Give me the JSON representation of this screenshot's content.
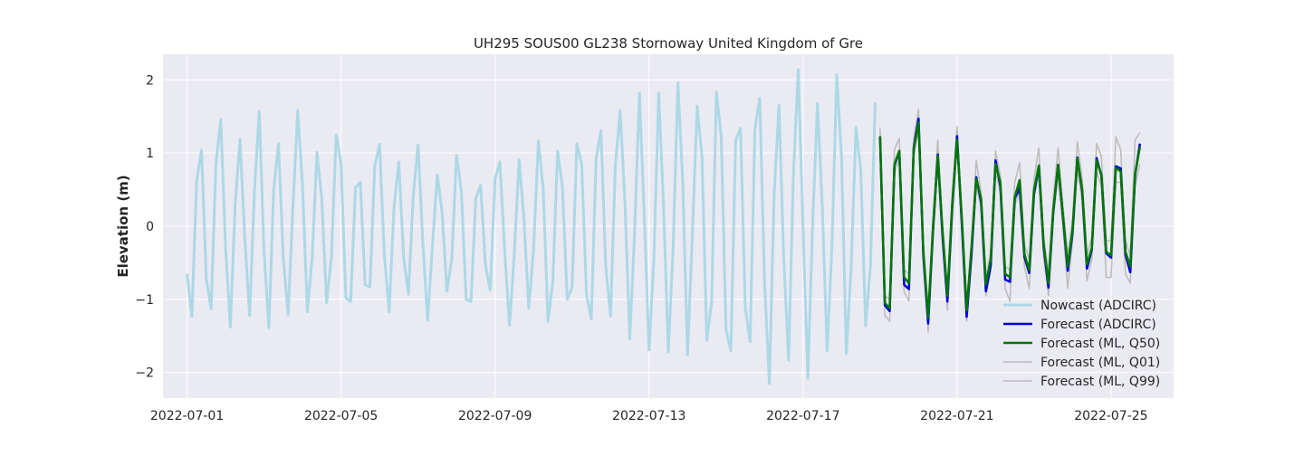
{
  "chart_data": {
    "type": "line",
    "title": "UH295 SOUS00 GL238 Stornoway United Kingdom of Gre",
    "xlabel": "",
    "ylabel": "Elevation (m)",
    "x_range": [
      "2022-06-30T09:00",
      "2022-07-26T15:00"
    ],
    "ylim": [
      -2.35,
      2.35
    ],
    "x_ticks": [
      "2022-07-01",
      "2022-07-05",
      "2022-07-09",
      "2022-07-13",
      "2022-07-17",
      "2022-07-21",
      "2022-07-25"
    ],
    "y_ticks": [
      -2,
      -1,
      0,
      1,
      2
    ],
    "grid": true,
    "background": "#eaeaf2",
    "legend_position": "bottom-right",
    "series": [
      {
        "name": "Nowcast (ADCIRC)",
        "color": "#add8e6",
        "x": [
          "2022-07-01T00:00",
          "2022-07-01T03:00",
          "2022-07-01T06:00",
          "2022-07-01T09:00",
          "2022-07-01T12:00",
          "2022-07-01T15:00",
          "2022-07-01T18:00",
          "2022-07-01T21:00",
          "2022-07-02T00:00",
          "2022-07-02T03:00",
          "2022-07-02T06:00",
          "2022-07-02T09:00",
          "2022-07-02T12:00",
          "2022-07-02T15:00",
          "2022-07-02T18:00",
          "2022-07-02T21:00",
          "2022-07-03T00:00",
          "2022-07-03T03:00",
          "2022-07-03T06:00",
          "2022-07-03T09:00",
          "2022-07-03T12:00",
          "2022-07-03T15:00",
          "2022-07-03T18:00",
          "2022-07-03T21:00",
          "2022-07-04T00:00",
          "2022-07-04T03:00",
          "2022-07-04T06:00",
          "2022-07-04T09:00",
          "2022-07-04T12:00",
          "2022-07-04T15:00",
          "2022-07-04T18:00",
          "2022-07-04T21:00",
          "2022-07-05T00:00",
          "2022-07-05T03:00",
          "2022-07-05T06:00",
          "2022-07-05T09:00",
          "2022-07-05T12:00",
          "2022-07-05T15:00",
          "2022-07-05T18:00",
          "2022-07-05T21:00",
          "2022-07-06T00:00",
          "2022-07-06T03:00",
          "2022-07-06T06:00",
          "2022-07-06T09:00",
          "2022-07-06T12:00",
          "2022-07-06T15:00",
          "2022-07-06T18:00",
          "2022-07-06T21:00",
          "2022-07-07T00:00",
          "2022-07-07T03:00",
          "2022-07-07T06:00",
          "2022-07-07T09:00",
          "2022-07-07T12:00",
          "2022-07-07T15:00",
          "2022-07-07T18:00",
          "2022-07-07T21:00",
          "2022-07-08T00:00",
          "2022-07-08T03:00",
          "2022-07-08T06:00",
          "2022-07-08T09:00",
          "2022-07-08T12:00",
          "2022-07-08T15:00",
          "2022-07-08T18:00",
          "2022-07-08T21:00",
          "2022-07-09T00:00",
          "2022-07-09T03:00",
          "2022-07-09T06:00",
          "2022-07-09T09:00",
          "2022-07-09T12:00",
          "2022-07-09T15:00",
          "2022-07-09T18:00",
          "2022-07-09T21:00",
          "2022-07-10T00:00",
          "2022-07-10T03:00",
          "2022-07-10T06:00",
          "2022-07-10T09:00",
          "2022-07-10T12:00",
          "2022-07-10T15:00",
          "2022-07-10T18:00",
          "2022-07-10T21:00",
          "2022-07-11T00:00",
          "2022-07-11T03:00",
          "2022-07-11T06:00",
          "2022-07-11T09:00",
          "2022-07-11T12:00",
          "2022-07-11T15:00",
          "2022-07-11T18:00",
          "2022-07-11T21:00",
          "2022-07-12T00:00",
          "2022-07-12T03:00",
          "2022-07-12T06:00",
          "2022-07-12T09:00",
          "2022-07-12T12:00",
          "2022-07-12T15:00",
          "2022-07-12T18:00",
          "2022-07-12T21:00",
          "2022-07-13T00:00",
          "2022-07-13T03:00",
          "2022-07-13T06:00",
          "2022-07-13T09:00",
          "2022-07-13T12:00",
          "2022-07-13T15:00",
          "2022-07-13T18:00",
          "2022-07-13T21:00",
          "2022-07-14T00:00",
          "2022-07-14T03:00",
          "2022-07-14T06:00",
          "2022-07-14T09:00",
          "2022-07-14T12:00",
          "2022-07-14T15:00",
          "2022-07-14T18:00",
          "2022-07-14T21:00",
          "2022-07-15T00:00",
          "2022-07-15T03:00",
          "2022-07-15T06:00",
          "2022-07-15T09:00",
          "2022-07-15T12:00",
          "2022-07-15T15:00",
          "2022-07-15T18:00",
          "2022-07-15T21:00",
          "2022-07-16T00:00",
          "2022-07-16T03:00",
          "2022-07-16T06:00",
          "2022-07-16T09:00",
          "2022-07-16T12:00",
          "2022-07-16T15:00",
          "2022-07-16T18:00",
          "2022-07-16T21:00",
          "2022-07-17T00:00",
          "2022-07-17T03:00",
          "2022-07-17T06:00",
          "2022-07-17T09:00",
          "2022-07-17T12:00",
          "2022-07-17T15:00",
          "2022-07-17T18:00",
          "2022-07-17T21:00",
          "2022-07-18T00:00",
          "2022-07-18T03:00",
          "2022-07-18T06:00",
          "2022-07-18T09:00",
          "2022-07-18T12:00",
          "2022-07-18T15:00",
          "2022-07-18T18:00",
          "2022-07-18T21:00"
        ],
        "y": [
          -0.65,
          -1.23,
          0.63,
          1.04,
          -0.72,
          -1.13,
          0.85,
          1.46,
          -0.3,
          -1.38,
          0.3,
          1.19,
          -0.17,
          -1.22,
          0.47,
          1.57,
          -0.35,
          -1.39,
          0.49,
          1.13,
          -0.44,
          -1.21,
          0.27,
          1.58,
          0.55,
          -1.17,
          -0.42,
          1.01,
          0.37,
          -1.05,
          -0.42,
          1.25,
          0.85,
          -0.98,
          -1.03,
          0.53,
          0.6,
          -0.8,
          -0.83,
          0.82,
          1.12,
          -0.4,
          -1.17,
          0.25,
          0.88,
          -0.42,
          -0.93,
          0.41,
          1.11,
          -0.23,
          -1.29,
          -0.25,
          0.7,
          0.19,
          -0.89,
          -0.45,
          0.97,
          0.48,
          -1.0,
          -1.03,
          0.38,
          0.56,
          -0.53,
          -0.87,
          0.65,
          0.88,
          -0.33,
          -1.36,
          -0.37,
          0.91,
          0.1,
          -1.12,
          -0.32,
          1.17,
          0.52,
          -1.3,
          -0.76,
          1.03,
          0.54,
          -1.0,
          -0.84,
          1.13,
          0.85,
          -0.93,
          -1.27,
          0.92,
          1.31,
          -0.55,
          -1.23,
          0.83,
          1.58,
          0.31,
          -1.54,
          -0.08,
          1.82,
          0.16,
          -1.69,
          -0.46,
          1.82,
          0.3,
          -1.72,
          -0.3,
          1.96,
          0.6,
          -1.76,
          -0.12,
          1.64,
          0.95,
          -1.56,
          -1.04,
          1.83,
          1.22,
          -1.42,
          -1.7,
          1.17,
          1.34,
          -1.12,
          -1.58,
          1.33,
          1.75,
          -0.76,
          -2.15,
          0.44,
          1.65,
          -0.45,
          -1.83,
          0.71,
          2.14,
          -0.02,
          -2.08,
          0.04,
          1.68,
          0.27,
          -1.7,
          -0.29,
          2.07,
          0.94,
          -1.74,
          -0.55,
          1.35,
          0.76,
          -1.36,
          -0.55,
          1.69
        ]
      },
      {
        "name": "Forecast (ADCIRC)",
        "color": "#0000dd",
        "x": [
          "2022-07-19T00:00",
          "2022-07-19T03:00",
          "2022-07-19T06:00",
          "2022-07-19T09:00",
          "2022-07-19T12:00",
          "2022-07-19T15:00",
          "2022-07-19T18:00",
          "2022-07-19T21:00",
          "2022-07-20T00:00",
          "2022-07-20T03:00",
          "2022-07-20T06:00",
          "2022-07-20T09:00",
          "2022-07-20T12:00",
          "2022-07-20T15:00",
          "2022-07-20T18:00",
          "2022-07-20T21:00",
          "2022-07-21T00:00",
          "2022-07-21T03:00",
          "2022-07-21T06:00",
          "2022-07-21T09:00",
          "2022-07-21T12:00",
          "2022-07-21T15:00",
          "2022-07-21T18:00",
          "2022-07-21T21:00",
          "2022-07-22T00:00",
          "2022-07-22T03:00",
          "2022-07-22T06:00",
          "2022-07-22T09:00",
          "2022-07-22T12:00",
          "2022-07-22T15:00",
          "2022-07-22T18:00",
          "2022-07-22T21:00",
          "2022-07-23T00:00",
          "2022-07-23T03:00",
          "2022-07-23T06:00",
          "2022-07-23T09:00",
          "2022-07-23T12:00",
          "2022-07-23T15:00",
          "2022-07-23T18:00",
          "2022-07-23T21:00",
          "2022-07-24T00:00",
          "2022-07-24T03:00",
          "2022-07-24T06:00",
          "2022-07-24T09:00",
          "2022-07-24T12:00",
          "2022-07-24T15:00",
          "2022-07-24T18:00",
          "2022-07-24T21:00",
          "2022-07-25T00:00",
          "2022-07-25T03:00",
          "2022-07-25T06:00",
          "2022-07-25T09:00",
          "2022-07-25T12:00",
          "2022-07-25T15:00",
          "2022-07-25T18:00",
          "2022-07-25T21:00"
        ],
        "y": [
          1.23,
          -1.08,
          -1.16,
          0.83,
          1.02,
          -0.8,
          -0.86,
          1.07,
          1.47,
          -0.4,
          -1.33,
          -0.07,
          0.98,
          -0.15,
          -1.03,
          0.25,
          1.23,
          0.03,
          -1.24,
          -0.39,
          0.67,
          0.33,
          -0.89,
          -0.54,
          0.9,
          0.55,
          -0.73,
          -0.76,
          0.38,
          0.52,
          -0.42,
          -0.64,
          0.45,
          0.82,
          -0.29,
          -0.84,
          0.2,
          0.84,
          0.13,
          -0.61,
          -0.09,
          0.94,
          0.48,
          -0.58,
          -0.32,
          0.93,
          0.69,
          -0.37,
          -0.43,
          0.82,
          0.79,
          -0.39,
          -0.63,
          0.7,
          1.13,
          null
        ],
        "y_note": ""
      },
      {
        "name": "Forecast (ML, Q50)",
        "color": "#007700",
        "x": [
          "2022-07-19T00:00",
          "2022-07-19T03:00",
          "2022-07-19T06:00",
          "2022-07-19T09:00",
          "2022-07-19T12:00",
          "2022-07-19T15:00",
          "2022-07-19T18:00",
          "2022-07-19T21:00",
          "2022-07-20T00:00",
          "2022-07-20T03:00",
          "2022-07-20T06:00",
          "2022-07-20T09:00",
          "2022-07-20T12:00",
          "2022-07-20T15:00",
          "2022-07-20T18:00",
          "2022-07-20T21:00",
          "2022-07-21T00:00",
          "2022-07-21T03:00",
          "2022-07-21T06:00",
          "2022-07-21T09:00",
          "2022-07-21T12:00",
          "2022-07-21T15:00",
          "2022-07-21T18:00",
          "2022-07-21T21:00",
          "2022-07-22T00:00",
          "2022-07-22T03:00",
          "2022-07-22T06:00",
          "2022-07-22T09:00",
          "2022-07-22T12:00",
          "2022-07-22T15:00",
          "2022-07-22T18:00",
          "2022-07-22T21:00",
          "2022-07-23T00:00",
          "2022-07-23T03:00",
          "2022-07-23T06:00",
          "2022-07-23T09:00",
          "2022-07-23T12:00",
          "2022-07-23T15:00",
          "2022-07-23T18:00",
          "2022-07-23T21:00",
          "2022-07-24T00:00",
          "2022-07-24T03:00",
          "2022-07-24T06:00",
          "2022-07-24T09:00",
          "2022-07-24T12:00",
          "2022-07-24T15:00",
          "2022-07-24T18:00",
          "2022-07-24T21:00",
          "2022-07-25T00:00",
          "2022-07-25T03:00",
          "2022-07-25T06:00",
          "2022-07-25T09:00",
          "2022-07-25T12:00",
          "2022-07-25T15:00",
          "2022-07-25T18:00"
        ],
        "y": [
          1.23,
          -1.05,
          -1.12,
          0.85,
          1.03,
          -0.7,
          -0.78,
          1.05,
          1.42,
          -0.35,
          -1.25,
          -0.02,
          0.96,
          -0.08,
          -0.95,
          0.3,
          1.18,
          0.1,
          -1.15,
          -0.3,
          0.65,
          0.38,
          -0.8,
          -0.45,
          0.85,
          0.6,
          -0.65,
          -0.7,
          0.4,
          0.63,
          -0.38,
          -0.6,
          0.5,
          0.83,
          -0.25,
          -0.78,
          0.22,
          0.84,
          0.15,
          -0.55,
          -0.05,
          0.93,
          0.5,
          -0.52,
          -0.3,
          0.9,
          0.7,
          -0.35,
          -0.4,
          0.8,
          0.75,
          -0.35,
          -0.55,
          0.72,
          1.08
        ]
      },
      {
        "name": "Forecast (ML, Q01)",
        "color": "#bbbbbb",
        "x": [
          "2022-07-19T00:00",
          "2022-07-19T03:00",
          "2022-07-19T06:00",
          "2022-07-19T09:00",
          "2022-07-19T12:00",
          "2022-07-19T15:00",
          "2022-07-19T18:00",
          "2022-07-19T21:00",
          "2022-07-20T00:00",
          "2022-07-20T03:00",
          "2022-07-20T06:00",
          "2022-07-20T09:00",
          "2022-07-20T12:00",
          "2022-07-20T15:00",
          "2022-07-20T18:00",
          "2022-07-20T21:00",
          "2022-07-21T00:00",
          "2022-07-21T03:00",
          "2022-07-21T06:00",
          "2022-07-21T09:00",
          "2022-07-21T12:00",
          "2022-07-21T15:00",
          "2022-07-21T18:00",
          "2022-07-21T21:00",
          "2022-07-22T00:00",
          "2022-07-22T03:00",
          "2022-07-22T06:00",
          "2022-07-22T09:00",
          "2022-07-22T12:00",
          "2022-07-22T15:00",
          "2022-07-22T18:00",
          "2022-07-22T21:00",
          "2022-07-23T00:00",
          "2022-07-23T03:00",
          "2022-07-23T06:00",
          "2022-07-23T09:00",
          "2022-07-23T12:00",
          "2022-07-23T15:00",
          "2022-07-23T18:00",
          "2022-07-23T21:00",
          "2022-07-24T00:00",
          "2022-07-24T03:00",
          "2022-07-24T06:00",
          "2022-07-24T09:00",
          "2022-07-24T12:00",
          "2022-07-24T15:00",
          "2022-07-24T18:00",
          "2022-07-24T21:00",
          "2022-07-25T00:00",
          "2022-07-25T03:00",
          "2022-07-25T06:00",
          "2022-07-25T09:00",
          "2022-07-25T12:00",
          "2022-07-25T15:00",
          "2022-07-25T18:00"
        ],
        "y": [
          1.2,
          -1.22,
          -1.3,
          0.75,
          0.9,
          -0.9,
          -1.02,
          0.95,
          1.35,
          -0.5,
          -1.45,
          -0.15,
          0.85,
          -0.25,
          -1.15,
          0.15,
          1.1,
          -0.05,
          -1.3,
          -0.45,
          0.55,
          0.25,
          -0.95,
          -0.6,
          0.75,
          0.45,
          -0.85,
          -1.03,
          0.28,
          0.5,
          -0.55,
          -0.85,
          0.4,
          0.7,
          -0.42,
          -0.95,
          0.1,
          0.7,
          0.0,
          -0.85,
          -0.2,
          0.78,
          0.35,
          -0.75,
          -0.45,
          0.75,
          0.55,
          -0.7,
          -0.7,
          0.6,
          0.6,
          -0.65,
          -0.78,
          0.55,
          0.85
        ]
      },
      {
        "name": "Forecast (ML, Q99)",
        "color": "#bbbbbb",
        "x": [
          "2022-07-19T00:00",
          "2022-07-19T03:00",
          "2022-07-19T06:00",
          "2022-07-19T09:00",
          "2022-07-19T12:00",
          "2022-07-19T15:00",
          "2022-07-19T18:00",
          "2022-07-19T21:00",
          "2022-07-20T00:00",
          "2022-07-20T03:00",
          "2022-07-20T06:00",
          "2022-07-20T09:00",
          "2022-07-20T12:00",
          "2022-07-20T15:00",
          "2022-07-20T18:00",
          "2022-07-20T21:00",
          "2022-07-21T00:00",
          "2022-07-21T03:00",
          "2022-07-21T06:00",
          "2022-07-21T09:00",
          "2022-07-21T12:00",
          "2022-07-21T15:00",
          "2022-07-21T18:00",
          "2022-07-21T21:00",
          "2022-07-22T00:00",
          "2022-07-22T03:00",
          "2022-07-22T06:00",
          "2022-07-22T09:00",
          "2022-07-22T12:00",
          "2022-07-22T15:00",
          "2022-07-22T18:00",
          "2022-07-22T21:00",
          "2022-07-23T00:00",
          "2022-07-23T03:00",
          "2022-07-23T06:00",
          "2022-07-23T09:00",
          "2022-07-23T12:00",
          "2022-07-23T15:00",
          "2022-07-23T18:00",
          "2022-07-23T21:00",
          "2022-07-24T00:00",
          "2022-07-24T03:00",
          "2022-07-24T06:00",
          "2022-07-24T09:00",
          "2022-07-24T12:00",
          "2022-07-24T15:00",
          "2022-07-24T18:00",
          "2022-07-24T21:00",
          "2022-07-25T00:00",
          "2022-07-25T03:00",
          "2022-07-25T06:00",
          "2022-07-25T09:00",
          "2022-07-25T12:00",
          "2022-07-25T15:00",
          "2022-07-25T18:00",
          "2022-07-25T21:00"
        ],
        "y": [
          1.35,
          -0.95,
          -1.0,
          1.05,
          1.2,
          -0.6,
          -0.65,
          1.2,
          1.6,
          -0.25,
          -1.1,
          0.1,
          1.18,
          0.0,
          -0.85,
          0.45,
          1.36,
          0.2,
          -1.05,
          -0.2,
          0.9,
          0.45,
          -0.7,
          -0.35,
          1.03,
          0.7,
          -0.55,
          -0.6,
          0.6,
          0.87,
          -0.25,
          -0.45,
          0.65,
          1.07,
          -0.15,
          -0.62,
          0.4,
          1.07,
          0.3,
          -0.4,
          0.1,
          1.16,
          0.65,
          -0.4,
          -0.15,
          1.13,
          0.95,
          -0.2,
          -0.2,
          1.22,
          1.05,
          -0.2,
          -0.4,
          1.18,
          1.28,
          null
        ]
      }
    ]
  }
}
